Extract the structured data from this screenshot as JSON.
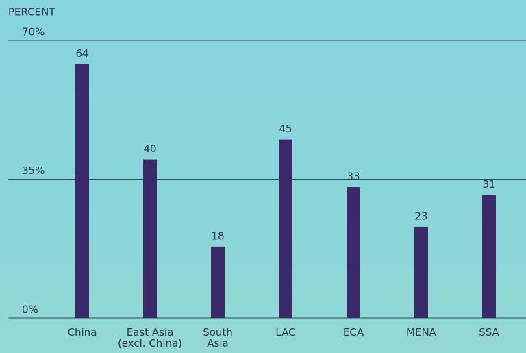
{
  "chart_data": {
    "type": "bar",
    "y_axis_label": "PERCENT",
    "categories": [
      "China",
      "East Asia\n(excl. China)",
      "South\nAsia",
      "LAC",
      "ECA",
      "MENA",
      "SSA"
    ],
    "values": [
      64,
      40,
      18,
      45,
      33,
      23,
      31
    ],
    "color": "#3b2a6a",
    "ylim": [
      0,
      70
    ],
    "yticks": [
      {
        "value": 0,
        "label": "0%"
      },
      {
        "value": 35,
        "label": "35%"
      },
      {
        "value": 70,
        "label": "70%"
      }
    ],
    "grid": true
  }
}
